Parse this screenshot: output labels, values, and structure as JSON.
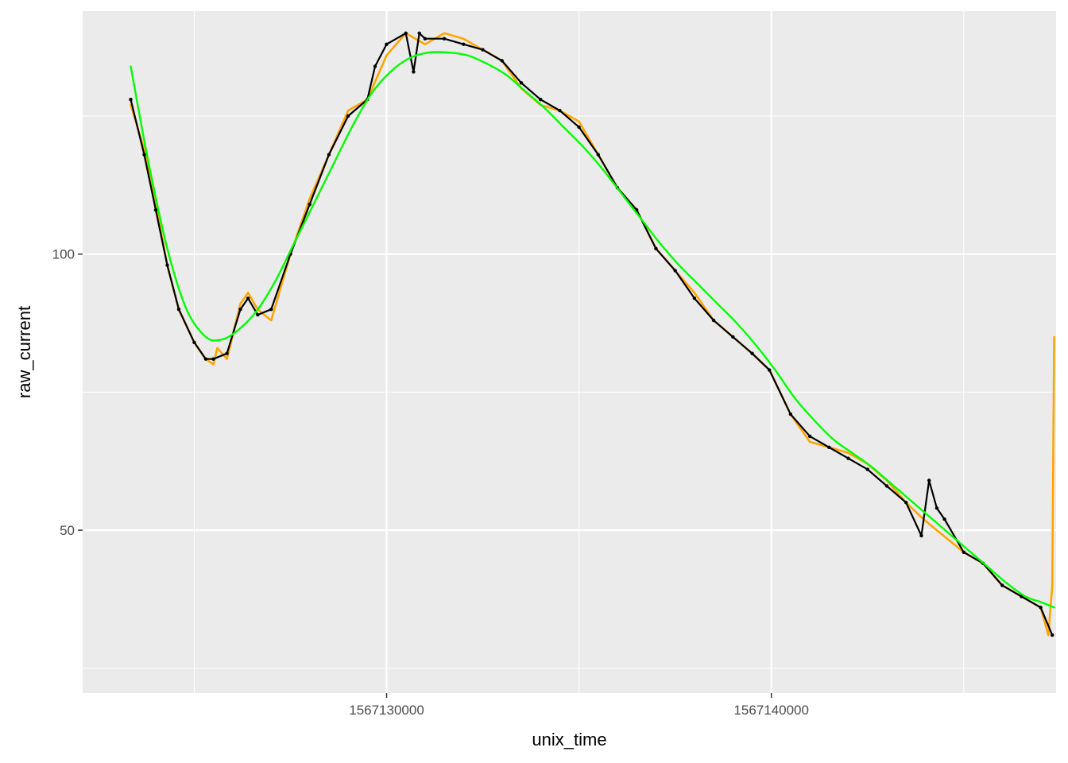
{
  "chart_data": {
    "type": "line",
    "xlabel": "unix_time",
    "ylabel": "raw_current",
    "xlim": [
      1567122100,
      1567147400
    ],
    "ylim": [
      20.5,
      144
    ],
    "x_ticks": [
      1567130000,
      1567140000
    ],
    "x_tick_labels": [
      "1567130000",
      "1567140000"
    ],
    "y_ticks": [
      50,
      100
    ],
    "y_tick_labels": [
      "50",
      "100"
    ],
    "x_minor_ticks": [
      1567125000,
      1567135000,
      1567145000
    ],
    "y_minor_ticks": [
      25,
      75,
      125
    ],
    "grid": true,
    "panel_background": "#ebebeb",
    "grid_color": "#ffffff",
    "series": [
      {
        "style": "line",
        "color": "#ffa500",
        "x": [
          1567123350,
          1567123700,
          1567124000,
          1567124300,
          1567124600,
          1567125000,
          1567125300,
          1567125500,
          1567125600,
          1567125850,
          1567126200,
          1567126400,
          1567126650,
          1567127000,
          1567127500,
          1567128000,
          1567128500,
          1567129000,
          1567129500,
          1567130000,
          1567130500,
          1567131000,
          1567131500,
          1567132000,
          1567132500,
          1567133000,
          1567133500,
          1567134000,
          1567134500,
          1567135000,
          1567135500,
          1567136000,
          1567136500,
          1567137000,
          1567137500,
          1567138000,
          1567138500,
          1567139000,
          1567139500,
          1567139950,
          1567140500,
          1567141000,
          1567141500,
          1567142000,
          1567142500,
          1567143000,
          1567143500,
          1567143950,
          1567144300,
          1567145000,
          1567145500,
          1567146000,
          1567146500,
          1567147000,
          1567147200,
          1567147300,
          1567147350
        ],
        "y": [
          127,
          119,
          109,
          98,
          90,
          84,
          81,
          80,
          83,
          81,
          91,
          93,
          90,
          88,
          100,
          110,
          118,
          126,
          128,
          136,
          140,
          138,
          140,
          139,
          137,
          135,
          130,
          127,
          126,
          124,
          118,
          112,
          108,
          101,
          97,
          93,
          88,
          85,
          82,
          79,
          71,
          66,
          65,
          64,
          62,
          59,
          55,
          52,
          50,
          46,
          44,
          40,
          38,
          36,
          31,
          40,
          85
        ]
      },
      {
        "style": "line",
        "color": "#000000",
        "x": [
          1567123350,
          1567123700,
          1567124000,
          1567124300,
          1567124600,
          1567125000,
          1567125300,
          1567125500,
          1567125850,
          1567126200,
          1567126400,
          1567126650,
          1567127000,
          1567127500,
          1567128000,
          1567128500,
          1567129000,
          1567129500,
          1567129700,
          1567130000,
          1567130500,
          1567130700,
          1567130850,
          1567131000,
          1567131500,
          1567132000,
          1567132500,
          1567133000,
          1567133500,
          1567134000,
          1567134500,
          1567135000,
          1567135500,
          1567136000,
          1567136500,
          1567137000,
          1567137500,
          1567138000,
          1567138500,
          1567139000,
          1567139500,
          1567139950,
          1567140500,
          1567141000,
          1567141500,
          1567142000,
          1567142500,
          1567143000,
          1567143500,
          1567143900,
          1567144100,
          1567144300,
          1567144500,
          1567145000,
          1567145500,
          1567146000,
          1567146500,
          1567147000,
          1567147300
        ],
        "y": [
          128,
          118,
          108,
          98,
          90,
          84,
          81,
          81,
          82,
          90,
          92,
          89,
          90,
          100,
          109,
          118,
          125,
          128,
          134,
          138,
          140,
          133,
          140,
          139,
          139,
          138,
          137,
          135,
          131,
          128,
          126,
          123,
          118,
          112,
          108,
          101,
          97,
          92,
          88,
          85,
          82,
          79,
          71,
          67,
          65,
          63,
          61,
          58,
          55,
          49,
          59,
          54,
          52,
          46,
          44,
          40,
          38,
          36,
          31
        ]
      },
      {
        "style": "smooth",
        "color": "#00ff00",
        "x": [
          1567123350,
          1567123800,
          1567124300,
          1567124800,
          1567125300,
          1567125700,
          1567126100,
          1567126600,
          1567127100,
          1567127600,
          1567128100,
          1567128600,
          1567129100,
          1567129600,
          1567130100,
          1567130600,
          1567131100,
          1567131600,
          1567132100,
          1567132600,
          1567133100,
          1567133600,
          1567134100,
          1567134600,
          1567135100,
          1567135600,
          1567136100,
          1567136600,
          1567137100,
          1567137600,
          1567138100,
          1567138600,
          1567139100,
          1567139600,
          1567140100,
          1567140600,
          1567141100,
          1567141600,
          1567142100,
          1567142600,
          1567143100,
          1567143600,
          1567144100,
          1567144600,
          1567145100,
          1567145600,
          1567146100,
          1567146600,
          1567147000,
          1567147350
        ],
        "y": [
          134,
          117,
          101,
          90,
          85,
          84.5,
          86,
          89.5,
          95,
          102,
          109,
          116,
          123,
          129,
          133,
          135.5,
          136.5,
          136.5,
          136,
          134.5,
          132.5,
          129.5,
          126.5,
          123,
          119.5,
          115.5,
          111,
          106.5,
          102,
          98,
          94.5,
          91,
          87.5,
          83.5,
          79,
          74,
          70,
          66.5,
          64,
          61.5,
          58.5,
          55.5,
          52.5,
          49.5,
          46.5,
          43.5,
          40.5,
          38,
          37,
          36
        ]
      }
    ]
  }
}
